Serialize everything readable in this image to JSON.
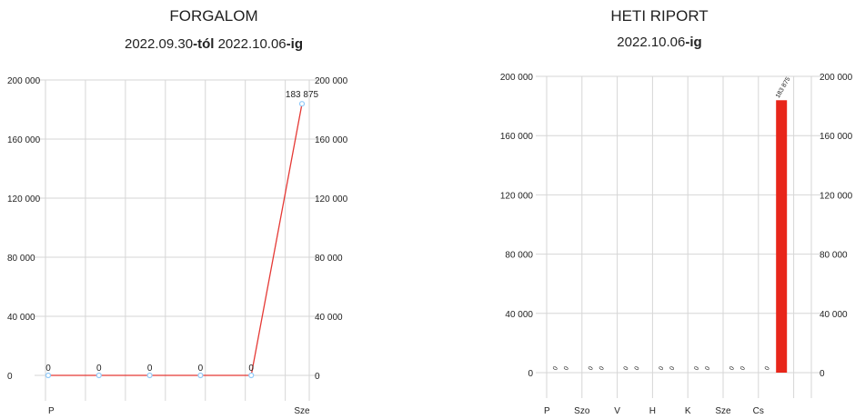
{
  "colors": {
    "line": "#e53935",
    "bar": "#e8261a",
    "marker": "#90caf9",
    "grid": "#d6d6d6",
    "text": "#222222"
  },
  "chart_data": [
    {
      "type": "line",
      "title": "FORGALOM",
      "subtitle": {
        "start": "2022.09.30",
        "start_suffix": "-tól",
        "end": " 2022.10.06",
        "end_suffix": "-ig"
      },
      "categories": [
        "P",
        "",
        "",
        "",
        "",
        "Sze"
      ],
      "series": [
        {
          "values": [
            0,
            0,
            0,
            0,
            0,
            183875
          ]
        }
      ],
      "data_labels": [
        "0",
        "0",
        "0",
        "0",
        "0",
        "183 875"
      ],
      "ylim": [
        0,
        200000
      ],
      "yticks": [
        "0",
        "40 000",
        "80 000",
        "120 000",
        "160 000",
        "200 000"
      ],
      "ytick_values": [
        0,
        40000,
        80000,
        120000,
        160000,
        200000
      ],
      "y_axes": "both",
      "grid": true
    },
    {
      "type": "bar",
      "title": "HETI RIPORT",
      "subtitle": {
        "end": "2022.10.06",
        "end_suffix": "-ig"
      },
      "categories": [
        "P",
        "Szo",
        "V",
        "H",
        "K",
        "Sze",
        "Cs"
      ],
      "series": [
        {
          "values": [
            0,
            0,
            0,
            0,
            0,
            0,
            0
          ]
        },
        {
          "values": [
            0,
            0,
            0,
            0,
            0,
            0,
            183875
          ]
        }
      ],
      "data_labels": [
        [
          "0",
          "0",
          "0",
          "0",
          "0",
          "0",
          "0"
        ],
        [
          "0",
          "0",
          "0",
          "0",
          "0",
          "0",
          "183 875"
        ]
      ],
      "ylim": [
        0,
        200000
      ],
      "yticks": [
        "0",
        "40 000",
        "80 000",
        "120 000",
        "160 000",
        "200 000"
      ],
      "ytick_values": [
        0,
        40000,
        80000,
        120000,
        160000,
        200000
      ],
      "y_axes": "both",
      "grid": true
    }
  ]
}
